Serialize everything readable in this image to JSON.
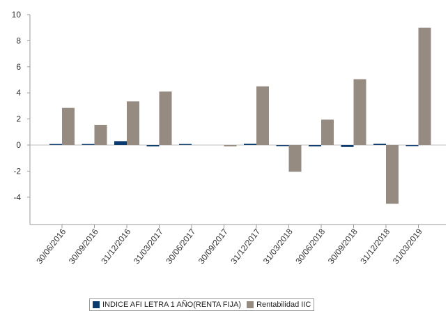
{
  "chart_data": {
    "type": "bar",
    "categories": [
      "30/06/2016",
      "30/09/2016",
      "31/12/2016",
      "31/03/2017",
      "30/06/2017",
      "30/09/2017",
      "31/12/2017",
      "31/03/2018",
      "30/06/2018",
      "30/09/2018",
      "31/12/2018",
      "31/03/2019"
    ],
    "series": [
      {
        "name": "INDICE AFI LETRA 1 AÑO(RENTA FIJA)",
        "color": "#0b3b6e",
        "values": [
          0.05,
          0.05,
          0.3,
          -0.1,
          0.05,
          0.0,
          0.1,
          -0.05,
          -0.1,
          -0.15,
          0.1,
          -0.05
        ]
      },
      {
        "name": "Rentabilidad IIC",
        "color": "#968b80",
        "values": [
          2.85,
          1.55,
          3.35,
          4.1,
          0.0,
          -0.1,
          4.5,
          -2.05,
          1.95,
          5.05,
          -4.5,
          9.0
        ]
      }
    ],
    "title": "",
    "xlabel": "",
    "ylabel": "",
    "ylim": [
      -6,
      10
    ],
    "yticks": [
      10,
      8,
      6,
      4,
      2,
      0,
      -2,
      -4
    ],
    "grid": false,
    "legend_position": "bottom"
  }
}
